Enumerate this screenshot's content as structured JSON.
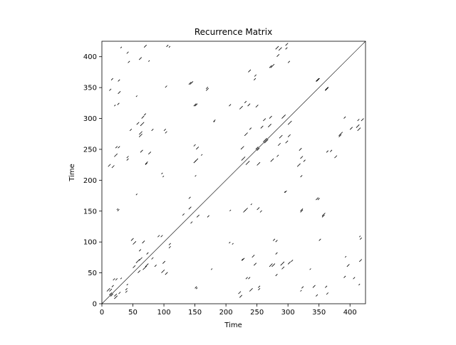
{
  "chart_data": {
    "type": "heatmap",
    "title": "Recurrence Matrix",
    "xlabel": "Time",
    "ylabel": "Time",
    "xlim": [
      0,
      425
    ],
    "ylim": [
      0,
      425
    ],
    "xticks": [
      0,
      50,
      100,
      150,
      200,
      250,
      300,
      350,
      400
    ],
    "yticks": [
      0,
      50,
      100,
      150,
      200,
      250,
      300,
      350,
      400
    ],
    "colors": {
      "background": "#ffffff",
      "recurrence": "#000000"
    },
    "main_diagonal": {
      "from": 0,
      "to": 425
    },
    "recurrence_segments": [
      {
        "x": 8,
        "y": 20,
        "len": 5
      },
      {
        "x": 12,
        "y": 14,
        "len": 4
      },
      {
        "x": 16,
        "y": 27,
        "len": 3
      },
      {
        "x": 20,
        "y": 12,
        "len": 4
      },
      {
        "x": 22,
        "y": 38,
        "len": 3
      },
      {
        "x": 30,
        "y": 40,
        "len": 2
      },
      {
        "x": 38,
        "y": 18,
        "len": 3
      },
      {
        "x": 10,
        "y": 222,
        "len": 4
      },
      {
        "x": 20,
        "y": 238,
        "len": 5
      },
      {
        "x": 22,
        "y": 252,
        "len": 3
      },
      {
        "x": 12,
        "y": 345,
        "len": 3
      },
      {
        "x": 26,
        "y": 360,
        "len": 3
      },
      {
        "x": 30,
        "y": 414,
        "len": 2
      },
      {
        "x": 20,
        "y": 320,
        "len": 2
      },
      {
        "x": 24,
        "y": 152,
        "len": 2
      },
      {
        "x": 40,
        "y": 236,
        "len": 3
      },
      {
        "x": 45,
        "y": 280,
        "len": 3
      },
      {
        "x": 42,
        "y": 390,
        "len": 3
      },
      {
        "x": 47,
        "y": 102,
        "len": 4
      },
      {
        "x": 55,
        "y": 66,
        "len": 6
      },
      {
        "x": 58,
        "y": 50,
        "len": 4
      },
      {
        "x": 60,
        "y": 270,
        "len": 5
      },
      {
        "x": 62,
        "y": 288,
        "len": 6
      },
      {
        "x": 64,
        "y": 300,
        "len": 4
      },
      {
        "x": 70,
        "y": 60,
        "len": 5
      },
      {
        "x": 72,
        "y": 80,
        "len": 3
      },
      {
        "x": 62,
        "y": 245,
        "len": 4
      },
      {
        "x": 70,
        "y": 225,
        "len": 3
      },
      {
        "x": 68,
        "y": 415,
        "len": 4
      },
      {
        "x": 75,
        "y": 392,
        "len": 2
      },
      {
        "x": 80,
        "y": 280,
        "len": 3
      },
      {
        "x": 85,
        "y": 60,
        "len": 3
      },
      {
        "x": 90,
        "y": 108,
        "len": 3
      },
      {
        "x": 96,
        "y": 50,
        "len": 5
      },
      {
        "x": 98,
        "y": 65,
        "len": 4
      },
      {
        "x": 100,
        "y": 280,
        "len": 3
      },
      {
        "x": 104,
        "y": 416,
        "len": 3
      },
      {
        "x": 98,
        "y": 205,
        "len": 2
      },
      {
        "x": 108,
        "y": 95,
        "len": 3
      },
      {
        "x": 130,
        "y": 143,
        "len": 3
      },
      {
        "x": 140,
        "y": 153,
        "len": 4
      },
      {
        "x": 142,
        "y": 355,
        "len": 5
      },
      {
        "x": 148,
        "y": 320,
        "len": 4
      },
      {
        "x": 150,
        "y": 230,
        "len": 5
      },
      {
        "x": 152,
        "y": 250,
        "len": 4
      },
      {
        "x": 150,
        "y": 25,
        "len": 3
      },
      {
        "x": 168,
        "y": 345,
        "len": 4
      },
      {
        "x": 170,
        "y": 140,
        "len": 3
      },
      {
        "x": 176,
        "y": 55,
        "len": 2
      },
      {
        "x": 180,
        "y": 295,
        "len": 3
      },
      {
        "x": 205,
        "y": 320,
        "len": 3
      },
      {
        "x": 206,
        "y": 150,
        "len": 2
      },
      {
        "x": 210,
        "y": 96,
        "len": 2
      },
      {
        "x": 220,
        "y": 16,
        "len": 4
      },
      {
        "x": 222,
        "y": 315,
        "len": 5
      },
      {
        "x": 224,
        "y": 250,
        "len": 5
      },
      {
        "x": 225,
        "y": 232,
        "len": 6
      },
      {
        "x": 226,
        "y": 70,
        "len": 4
      },
      {
        "x": 228,
        "y": 148,
        "len": 4
      },
      {
        "x": 232,
        "y": 40,
        "len": 3
      },
      {
        "x": 235,
        "y": 320,
        "len": 4
      },
      {
        "x": 238,
        "y": 282,
        "len": 3
      },
      {
        "x": 240,
        "y": 160,
        "len": 2
      },
      {
        "x": 242,
        "y": 75,
        "len": 4
      },
      {
        "x": 245,
        "y": 362,
        "len": 3
      },
      {
        "x": 248,
        "y": 250,
        "len": 4
      },
      {
        "x": 252,
        "y": 26,
        "len": 3
      },
      {
        "x": 255,
        "y": 148,
        "len": 3
      },
      {
        "x": 260,
        "y": 296,
        "len": 4
      },
      {
        "x": 262,
        "y": 260,
        "len": 6
      },
      {
        "x": 268,
        "y": 286,
        "len": 5
      },
      {
        "x": 270,
        "y": 382,
        "len": 4
      },
      {
        "x": 272,
        "y": 230,
        "len": 5
      },
      {
        "x": 274,
        "y": 60,
        "len": 5
      },
      {
        "x": 276,
        "y": 102,
        "len": 3
      },
      {
        "x": 280,
        "y": 412,
        "len": 5
      },
      {
        "x": 284,
        "y": 256,
        "len": 4
      },
      {
        "x": 290,
        "y": 300,
        "len": 6
      },
      {
        "x": 290,
        "y": 56,
        "len": 4
      },
      {
        "x": 294,
        "y": 180,
        "len": 2
      },
      {
        "x": 296,
        "y": 418,
        "len": 4
      },
      {
        "x": 300,
        "y": 270,
        "len": 4
      },
      {
        "x": 305,
        "y": 68,
        "len": 3
      },
      {
        "x": 318,
        "y": 248,
        "len": 4
      },
      {
        "x": 320,
        "y": 150,
        "len": 4
      },
      {
        "x": 322,
        "y": 25,
        "len": 3
      },
      {
        "x": 325,
        "y": 230,
        "len": 3
      },
      {
        "x": 335,
        "y": 55,
        "len": 2
      },
      {
        "x": 340,
        "y": 26,
        "len": 4
      },
      {
        "x": 345,
        "y": 360,
        "len": 5
      },
      {
        "x": 348,
        "y": 168,
        "len": 3
      },
      {
        "x": 350,
        "y": 102,
        "len": 3
      },
      {
        "x": 355,
        "y": 140,
        "len": 4
      },
      {
        "x": 360,
        "y": 346,
        "len": 5
      },
      {
        "x": 362,
        "y": 15,
        "len": 3
      },
      {
        "x": 368,
        "y": 246,
        "len": 3
      },
      {
        "x": 375,
        "y": 236,
        "len": 4
      },
      {
        "x": 382,
        "y": 272,
        "len": 6
      },
      {
        "x": 390,
        "y": 300,
        "len": 3
      },
      {
        "x": 395,
        "y": 60,
        "len": 4
      },
      {
        "x": 400,
        "y": 282,
        "len": 4
      },
      {
        "x": 410,
        "y": 285,
        "len": 5
      },
      {
        "x": 412,
        "y": 296,
        "len": 3
      },
      {
        "x": 415,
        "y": 108,
        "len": 2
      },
      {
        "x": 405,
        "y": 40,
        "len": 3
      }
    ]
  }
}
